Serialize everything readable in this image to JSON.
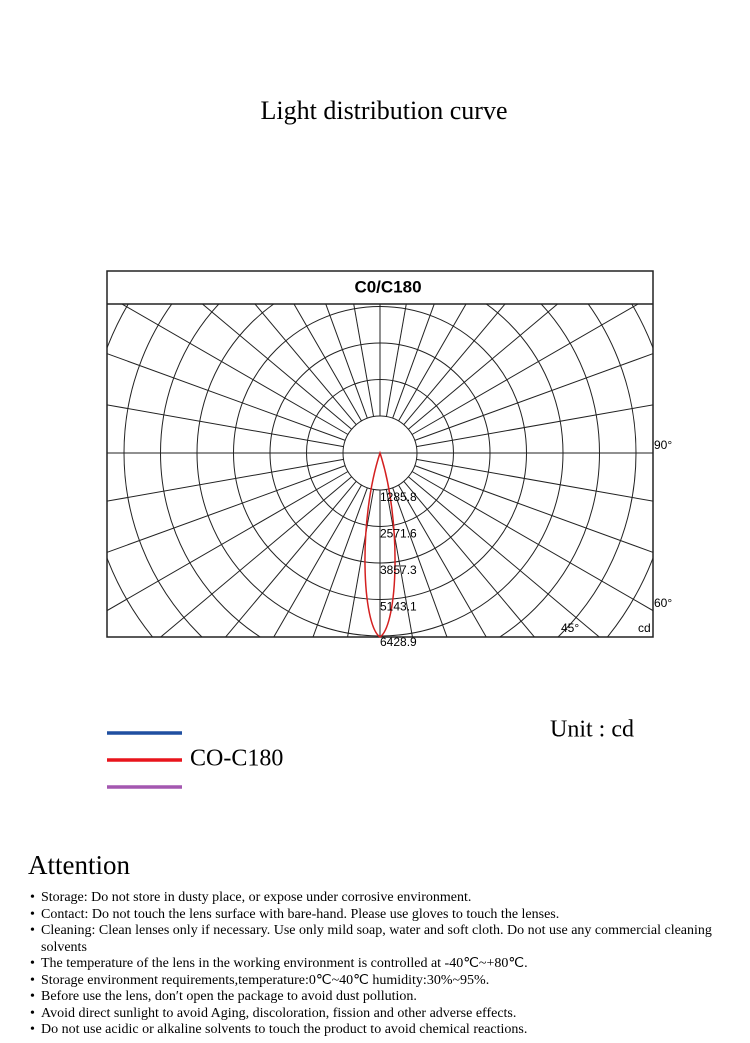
{
  "header": {
    "title": "Light distribution curve"
  },
  "diagram": {
    "title": "C0/C180",
    "ring_labels": [
      "1285.8",
      "2571.6",
      "3857.3",
      "5143.1",
      "6428.9"
    ],
    "angle_labels": [
      "90°",
      "60°",
      "45°"
    ],
    "unit_label": "cd"
  },
  "legend": {
    "label": "CO-C180",
    "unit": "Unit : cd"
  },
  "attention": {
    "title": "Attention",
    "items": [
      "Storage: Do not store in dusty place, or expose under corrosive environment.",
      "Contact: Do not touch the lens surface with bare-hand. Please use gloves to touch the lenses.",
      "Cleaning: Clean lenses only if necessary. Use only mild soap, water and soft cloth. Do not use any commercial cleaning solvents",
      "The temperature of the lens in the working environment is controlled at -40℃~+80℃.",
      "Storage environment requirements,temperature:0℃~40℃  humidity:30%~95%.",
      "Before use the lens, don′t open the package to avoid dust pollution.",
      "Avoid direct sunlight to avoid Aging, discoloration, fission and other adverse effects.",
      "Do not use acidic or alkaline solvents to touch the product to avoid  chemical reactions."
    ]
  }
}
